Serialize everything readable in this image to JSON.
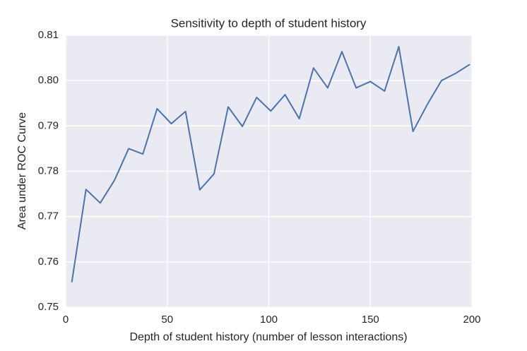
{
  "chart_data": {
    "type": "line",
    "title": "Sensitivity to depth of student history",
    "x_label": "Depth of student history (number of lesson interactions)",
    "y_label": "Area under ROC Curve",
    "x": [
      3,
      10,
      17,
      24,
      31,
      38,
      45,
      52,
      59,
      66,
      73,
      80,
      87,
      94,
      101,
      108,
      115,
      122,
      129,
      136,
      143,
      150,
      157,
      164,
      171,
      178,
      185,
      192,
      199
    ],
    "series": [
      {
        "color": "#4c72b0",
        "values": [
          0.7555,
          0.776,
          0.773,
          0.778,
          0.785,
          0.7838,
          0.7938,
          0.7905,
          0.7932,
          0.7759,
          0.7794,
          0.7942,
          0.7899,
          0.7963,
          0.7933,
          0.7969,
          0.7916,
          0.8028,
          0.7984,
          0.8064,
          0.7984,
          0.7998,
          0.7977,
          0.8075,
          0.7888,
          0.7947,
          0.8,
          0.8016,
          0.8036
        ]
      }
    ],
    "xlim": [
      0,
      200
    ],
    "xticks": [
      0,
      50,
      100,
      150,
      200
    ],
    "ylim": [
      0.75,
      0.81
    ],
    "yticks": [
      0.75,
      0.76,
      0.77,
      0.78,
      0.79,
      {
        "value": 0.8,
        "label": "0.80"
      },
      0.81
    ],
    "grid": true,
    "background": "#eaeaf2"
  }
}
